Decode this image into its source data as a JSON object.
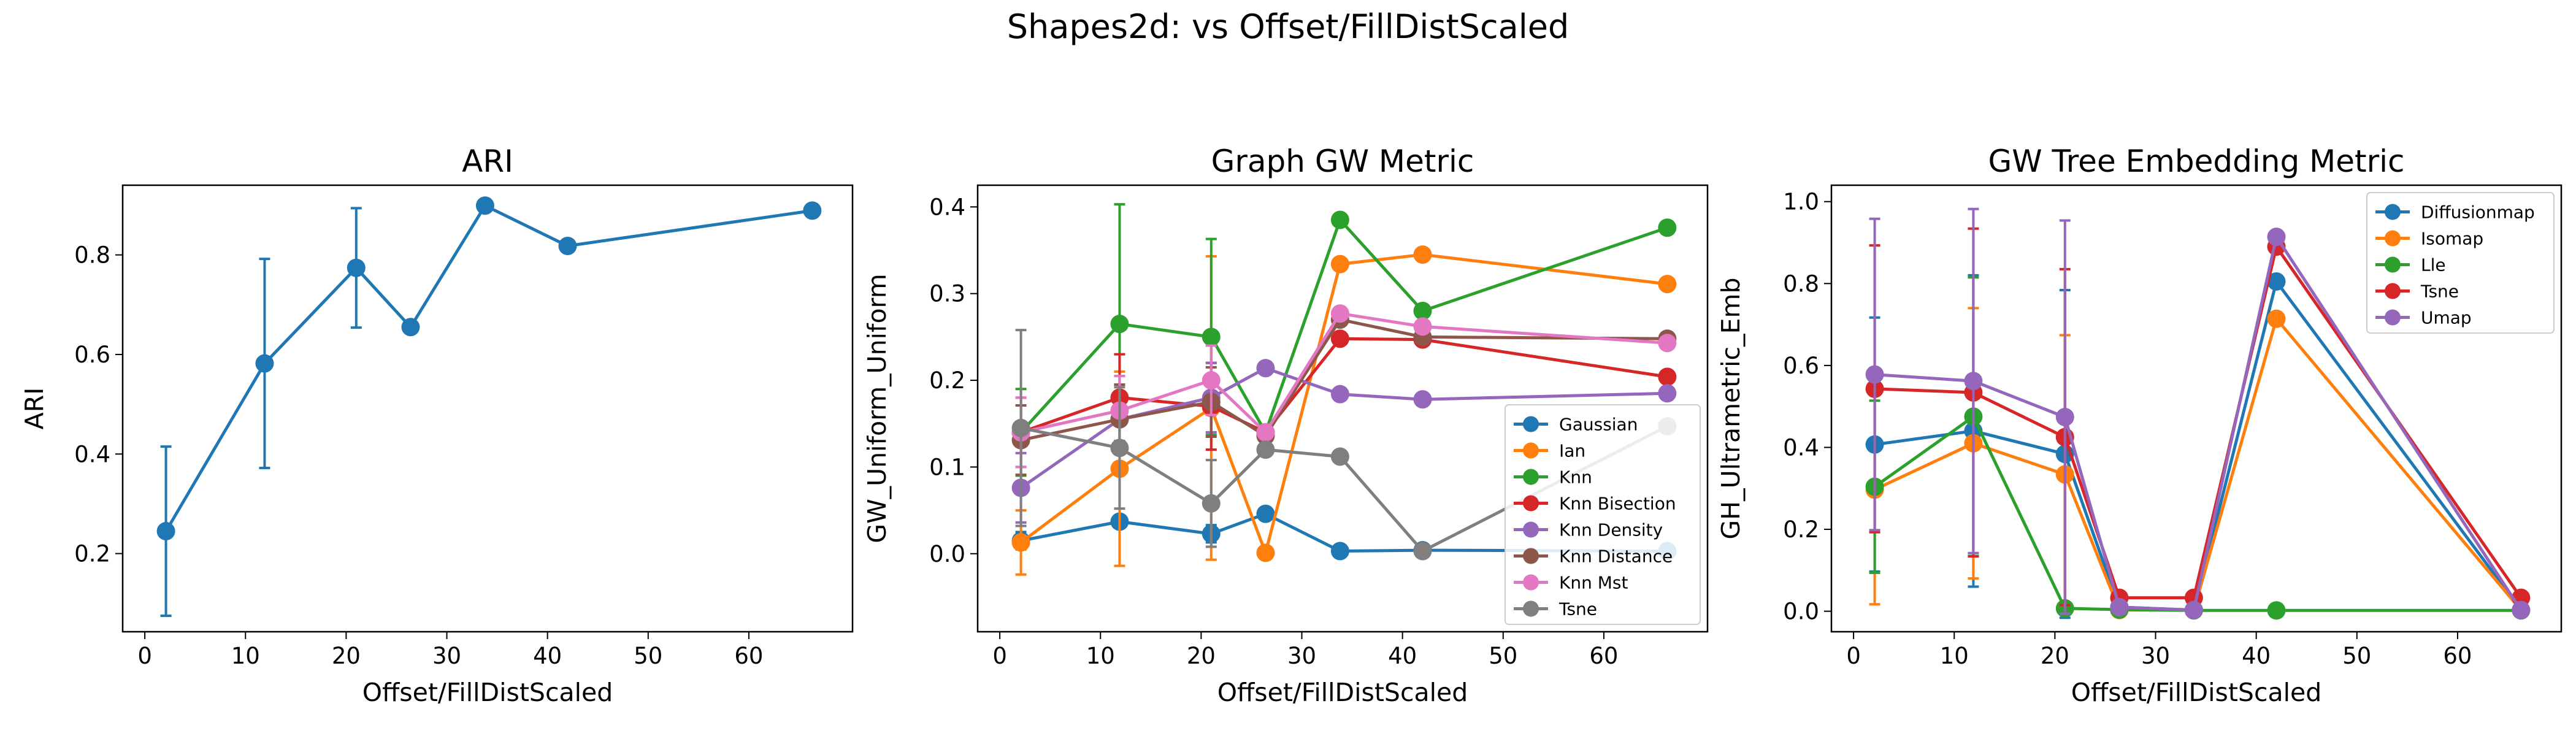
{
  "figure": {
    "suptitle": "Shapes2d: vs Offset/FillDistScaled"
  },
  "chart_data": [
    {
      "type": "line",
      "title": "ARI",
      "xlabel": "Offset/FillDistScaled",
      "ylabel": "ARI",
      "xlim": [
        -2.2,
        70.3
      ],
      "ylim": [
        0.043,
        0.94
      ],
      "xticks": [
        0,
        10,
        20,
        30,
        40,
        50,
        60
      ],
      "yticks": [
        0.2,
        0.4,
        0.6,
        0.8
      ],
      "ytick_labels": [
        "0.2",
        "0.4",
        "0.6",
        "0.8"
      ],
      "legend": null,
      "series": [
        {
          "color": "#1f77b4",
          "x": [
            2.1,
            11.9,
            21.0,
            26.4,
            33.8,
            42.0,
            66.3
          ],
          "y": [
            0.245,
            0.582,
            0.774,
            0.655,
            0.899,
            0.818,
            0.889
          ],
          "err": [
            0.17,
            0.21,
            0.12,
            0.0,
            0.0,
            0.0,
            0.0
          ]
        }
      ]
    },
    {
      "type": "line",
      "title": "Graph GW Metric",
      "xlabel": "Offset/FillDistScaled",
      "ylabel": "GW_Uniform_Uniform",
      "xlim": [
        -2.2,
        70.3
      ],
      "ylim": [
        -0.09,
        0.425
      ],
      "xticks": [
        0,
        10,
        20,
        30,
        40,
        50,
        60
      ],
      "yticks": [
        0.0,
        0.1,
        0.2,
        0.3,
        0.4
      ],
      "ytick_labels": [
        "0.0",
        "0.1",
        "0.2",
        "0.3",
        "0.4"
      ],
      "legend": "lower-right",
      "series": [
        {
          "name": "Gaussian",
          "color": "#1f77b4",
          "x": [
            2.1,
            11.9,
            21.0,
            26.4,
            33.8,
            42.0,
            66.3
          ],
          "y": [
            0.015,
            0.037,
            0.023,
            0.046,
            0.003,
            0.004,
            0.003
          ],
          "err": [
            0.01,
            0.005,
            0.01,
            0.0,
            0.0,
            0.0,
            0.0
          ]
        },
        {
          "name": "Ian",
          "color": "#ff7f0e",
          "x": [
            2.1,
            11.9,
            21.0,
            26.4,
            33.8,
            42.0,
            66.3
          ],
          "y": [
            0.013,
            0.098,
            0.168,
            0.001,
            0.334,
            0.345,
            0.311
          ],
          "err": [
            0.037,
            0.112,
            0.175,
            0.0,
            0.0,
            0.0,
            0.0
          ]
        },
        {
          "name": "Knn",
          "color": "#2ca02c",
          "x": [
            2.1,
            11.9,
            21.0,
            26.4,
            33.8,
            42.0,
            66.3
          ],
          "y": [
            0.14,
            0.265,
            0.25,
            0.14,
            0.385,
            0.28,
            0.376
          ],
          "err": [
            0.05,
            0.138,
            0.113,
            0.0,
            0.0,
            0.0,
            0.0
          ]
        },
        {
          "name": "Knn Bisection",
          "color": "#d62728",
          "x": [
            2.1,
            11.9,
            21.0,
            26.4,
            33.8,
            42.0,
            66.3
          ],
          "y": [
            0.14,
            0.18,
            0.17,
            0.14,
            0.248,
            0.247,
            0.204
          ],
          "err": [
            0.04,
            0.05,
            0.05,
            0.0,
            0.0,
            0.0,
            0.0
          ]
        },
        {
          "name": "Knn Density",
          "color": "#9467bd",
          "x": [
            2.1,
            11.9,
            21.0,
            26.4,
            33.8,
            42.0,
            66.3
          ],
          "y": [
            0.076,
            0.155,
            0.18,
            0.214,
            0.184,
            0.178,
            0.185
          ],
          "err": [
            0.04,
            0.04,
            0.04,
            0.0,
            0.0,
            0.0,
            0.0
          ]
        },
        {
          "name": "Knn Distance",
          "color": "#8c564b",
          "x": [
            2.1,
            11.9,
            21.0,
            26.4,
            33.8,
            42.0,
            66.3
          ],
          "y": [
            0.131,
            0.155,
            0.175,
            0.136,
            0.27,
            0.25,
            0.248
          ],
          "err": [
            0.04,
            0.04,
            0.04,
            0.0,
            0.0,
            0.0,
            0.0
          ]
        },
        {
          "name": "Knn Mst",
          "color": "#e377c2",
          "x": [
            2.1,
            11.9,
            21.0,
            26.4,
            33.8,
            42.0,
            66.3
          ],
          "y": [
            0.14,
            0.165,
            0.2,
            0.14,
            0.277,
            0.262,
            0.243
          ],
          "err": [
            0.04,
            0.04,
            0.04,
            0.0,
            0.0,
            0.0,
            0.0
          ]
        },
        {
          "name": "Tsne",
          "color": "#7f7f7f",
          "x": [
            2.1,
            11.9,
            21.0,
            26.4,
            33.8,
            42.0,
            66.3
          ],
          "y": [
            0.145,
            0.122,
            0.058,
            0.12,
            0.112,
            0.003,
            0.147
          ],
          "err": [
            0.113,
            0.07,
            0.05,
            0.0,
            0.0,
            0.0,
            0.0
          ]
        }
      ]
    },
    {
      "type": "line",
      "title": "GW Tree Embedding Metric",
      "xlabel": "Offset/FillDistScaled",
      "ylabel": "GH_Ultrametric_Emb",
      "xlim": [
        -2.2,
        70.3
      ],
      "ylim": [
        -0.05,
        1.04
      ],
      "xticks": [
        0,
        10,
        20,
        30,
        40,
        50,
        60
      ],
      "yticks": [
        0.0,
        0.2,
        0.4,
        0.6,
        0.8,
        1.0
      ],
      "ytick_labels": [
        "0.0",
        "0.2",
        "0.4",
        "0.6",
        "0.8",
        "1.0"
      ],
      "legend": "top-right",
      "series": [
        {
          "name": "Diffusionmap",
          "color": "#1f77b4",
          "x": [
            2.1,
            11.9,
            21.0,
            26.4,
            33.8,
            42.0,
            66.3
          ],
          "y": [
            0.407,
            0.44,
            0.384,
            0.01,
            0.003,
            0.805,
            0.003
          ],
          "err": [
            0.31,
            0.38,
            0.4,
            0.0,
            0.0,
            0.0,
            0.0
          ]
        },
        {
          "name": "Isomap",
          "color": "#ff7f0e",
          "x": [
            2.1,
            11.9,
            21.0,
            26.4,
            33.8,
            42.0,
            66.3
          ],
          "y": [
            0.297,
            0.41,
            0.334,
            0.003,
            0.003,
            0.714,
            0.003
          ],
          "err": [
            0.28,
            0.33,
            0.34,
            0.0,
            0.0,
            0.0,
            0.0
          ]
        },
        {
          "name": "Lle",
          "color": "#2ca02c",
          "x": [
            2.1,
            11.9,
            21.0,
            26.4,
            33.8,
            42.0,
            66.3
          ],
          "y": [
            0.304,
            0.475,
            0.007,
            0.004,
            0.002,
            0.002,
            0.002
          ],
          "err": [
            0.21,
            0.34,
            0.0,
            0.0,
            0.0,
            0.0,
            0.0
          ]
        },
        {
          "name": "Tsne",
          "color": "#d62728",
          "x": [
            2.1,
            11.9,
            21.0,
            26.4,
            33.8,
            42.0,
            66.3
          ],
          "y": [
            0.543,
            0.534,
            0.425,
            0.033,
            0.033,
            0.89,
            0.033
          ],
          "err": [
            0.35,
            0.4,
            0.41,
            0.0,
            0.0,
            0.0,
            0.0
          ]
        },
        {
          "name": "Umap",
          "color": "#9467bd",
          "x": [
            2.1,
            11.9,
            21.0,
            26.4,
            33.8,
            42.0,
            66.3
          ],
          "y": [
            0.578,
            0.562,
            0.474,
            0.01,
            0.003,
            0.914,
            0.003
          ],
          "err": [
            0.38,
            0.42,
            0.48,
            0.0,
            0.0,
            0.0,
            0.0
          ]
        }
      ]
    }
  ]
}
